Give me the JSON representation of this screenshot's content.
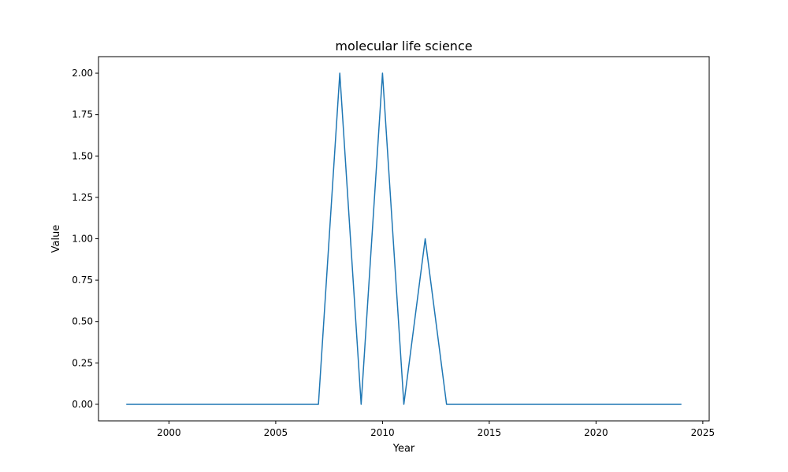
{
  "chart_data": {
    "type": "line",
    "title": "molecular life science",
    "xlabel": "Year",
    "ylabel": "Value",
    "xlim": [
      1996.7,
      2025.3
    ],
    "ylim": [
      -0.1,
      2.1
    ],
    "xticks": [
      2000,
      2005,
      2010,
      2015,
      2020,
      2025
    ],
    "yticks": [
      "0.00",
      "0.25",
      "0.50",
      "0.75",
      "1.00",
      "1.25",
      "1.50",
      "1.75",
      "2.00"
    ],
    "grid": false,
    "series": [
      {
        "color": "#1f77b4",
        "x": [
          1998,
          1999,
          2000,
          2001,
          2002,
          2003,
          2004,
          2005,
          2006,
          2007,
          2008,
          2009,
          2010,
          2011,
          2012,
          2013,
          2014,
          2015,
          2016,
          2017,
          2018,
          2019,
          2020,
          2021,
          2022,
          2023,
          2024
        ],
        "values": [
          0,
          0,
          0,
          0,
          0,
          0,
          0,
          0,
          0,
          0,
          2,
          0,
          2,
          0,
          1,
          0,
          0,
          0,
          0,
          0,
          0,
          0,
          0,
          0,
          0,
          0,
          0
        ]
      }
    ]
  }
}
